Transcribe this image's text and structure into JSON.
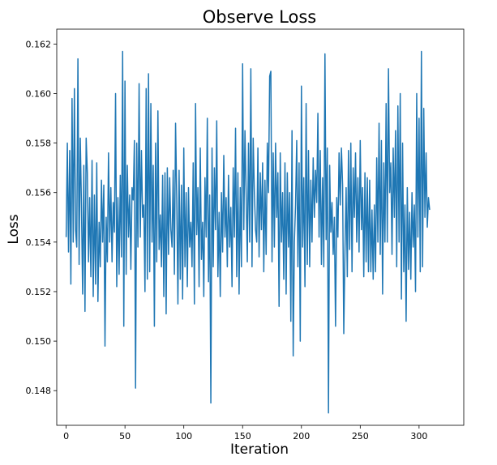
{
  "chart_data": {
    "type": "line",
    "title": "Observe Loss",
    "xlabel": "Iteration",
    "ylabel": "Loss",
    "xlim": [
      -8,
      338
    ],
    "ylim": [
      0.1466,
      0.1626
    ],
    "xticks": [
      0,
      50,
      100,
      150,
      200,
      250,
      300
    ],
    "yticks": [
      0.148,
      0.15,
      0.152,
      0.154,
      0.156,
      0.158,
      0.16,
      0.162
    ],
    "ytick_labels": [
      "0.148",
      "0.150",
      "0.152",
      "0.154",
      "0.156",
      "0.158",
      "0.160",
      "0.162"
    ],
    "grid": false,
    "series": [
      {
        "color": "#1f77b4",
        "x_start": 0,
        "x_step": 1,
        "y": [
          0.1542,
          0.158,
          0.1536,
          0.1577,
          0.1523,
          0.1598,
          0.154,
          0.1602,
          0.1545,
          0.1538,
          0.1614,
          0.1531,
          0.1582,
          0.1555,
          0.1519,
          0.1571,
          0.1512,
          0.1582,
          0.1568,
          0.1532,
          0.1558,
          0.1526,
          0.1573,
          0.1518,
          0.1559,
          0.1523,
          0.1572,
          0.1516,
          0.1548,
          0.153,
          0.1565,
          0.154,
          0.1563,
          0.1498,
          0.155,
          0.1532,
          0.1576,
          0.154,
          0.1562,
          0.1532,
          0.1556,
          0.1544,
          0.16,
          0.1522,
          0.1558,
          0.1527,
          0.1567,
          0.1534,
          0.1617,
          0.1506,
          0.1605,
          0.1527,
          0.1571,
          0.1542,
          0.1559,
          0.1529,
          0.1562,
          0.1557,
          0.1581,
          0.1481,
          0.158,
          0.1538,
          0.1604,
          0.1542,
          0.1577,
          0.155,
          0.1555,
          0.152,
          0.1602,
          0.1525,
          0.1608,
          0.1528,
          0.1596,
          0.154,
          0.1571,
          0.1506,
          0.158,
          0.1532,
          0.1593,
          0.1537,
          0.1551,
          0.153,
          0.1567,
          0.1518,
          0.1568,
          0.1511,
          0.157,
          0.1535,
          0.1566,
          0.1545,
          0.1538,
          0.1569,
          0.1527,
          0.1588,
          0.1558,
          0.1515,
          0.1569,
          0.1525,
          0.1563,
          0.1517,
          0.1578,
          0.153,
          0.156,
          0.1522,
          0.1562,
          0.1538,
          0.1548,
          0.153,
          0.1572,
          0.1515,
          0.1596,
          0.1543,
          0.1562,
          0.1522,
          0.1578,
          0.1533,
          0.1548,
          0.1518,
          0.1566,
          0.1542,
          0.159,
          0.1524,
          0.1559,
          0.1475,
          0.1578,
          0.153,
          0.157,
          0.1545,
          0.1589,
          0.1526,
          0.1552,
          0.1518,
          0.156,
          0.1536,
          0.1575,
          0.1542,
          0.1558,
          0.153,
          0.1567,
          0.1538,
          0.1554,
          0.1522,
          0.157,
          0.1542,
          0.1586,
          0.1526,
          0.1568,
          0.1519,
          0.1562,
          0.153,
          0.1612,
          0.1545,
          0.1585,
          0.156,
          0.1532,
          0.158,
          0.154,
          0.161,
          0.153,
          0.1582,
          0.156,
          0.1545,
          0.154,
          0.1578,
          0.1534,
          0.1568,
          0.1545,
          0.1572,
          0.1528,
          0.1565,
          0.1535,
          0.158,
          0.156,
          0.1607,
          0.1609,
          0.1532,
          0.1576,
          0.1538,
          0.158,
          0.155,
          0.1568,
          0.1514,
          0.1576,
          0.154,
          0.156,
          0.1525,
          0.1572,
          0.1519,
          0.1568,
          0.1538,
          0.156,
          0.1508,
          0.1585,
          0.1494,
          0.154,
          0.1555,
          0.1581,
          0.153,
          0.1572,
          0.15,
          0.1603,
          0.1538,
          0.1566,
          0.1522,
          0.1596,
          0.1531,
          0.1577,
          0.153,
          0.1565,
          0.154,
          0.1574,
          0.155,
          0.1569,
          0.1556,
          0.1592,
          0.1542,
          0.1577,
          0.1531,
          0.1566,
          0.153,
          0.1616,
          0.1541,
          0.1578,
          0.1471,
          0.1571,
          0.1544,
          0.1556,
          0.1535,
          0.155,
          0.1506,
          0.1558,
          0.1542,
          0.1576,
          0.1555,
          0.1578,
          0.1563,
          0.1503,
          0.1536,
          0.1562,
          0.1526,
          0.1577,
          0.1537,
          0.158,
          0.1528,
          0.157,
          0.155,
          0.1576,
          0.154,
          0.1566,
          0.1536,
          0.1581,
          0.1545,
          0.1562,
          0.1526,
          0.1568,
          0.1532,
          0.1566,
          0.1528,
          0.1565,
          0.1528,
          0.1553,
          0.1525,
          0.1555,
          0.1528,
          0.1574,
          0.154,
          0.1588,
          0.1535,
          0.1581,
          0.1519,
          0.1572,
          0.154,
          0.1596,
          0.154,
          0.161,
          0.156,
          0.1572,
          0.1535,
          0.1578,
          0.155,
          0.1585,
          0.153,
          0.1595,
          0.154,
          0.16,
          0.1517,
          0.158,
          0.1528,
          0.1555,
          0.1508,
          0.1562,
          0.1529,
          0.1552,
          0.1525,
          0.156,
          0.1538,
          0.1555,
          0.152,
          0.16,
          0.1542,
          0.159,
          0.1528,
          0.1617,
          0.153,
          0.1594,
          0.155,
          0.1576,
          0.1546,
          0.1558,
          0.1553
        ]
      }
    ]
  }
}
